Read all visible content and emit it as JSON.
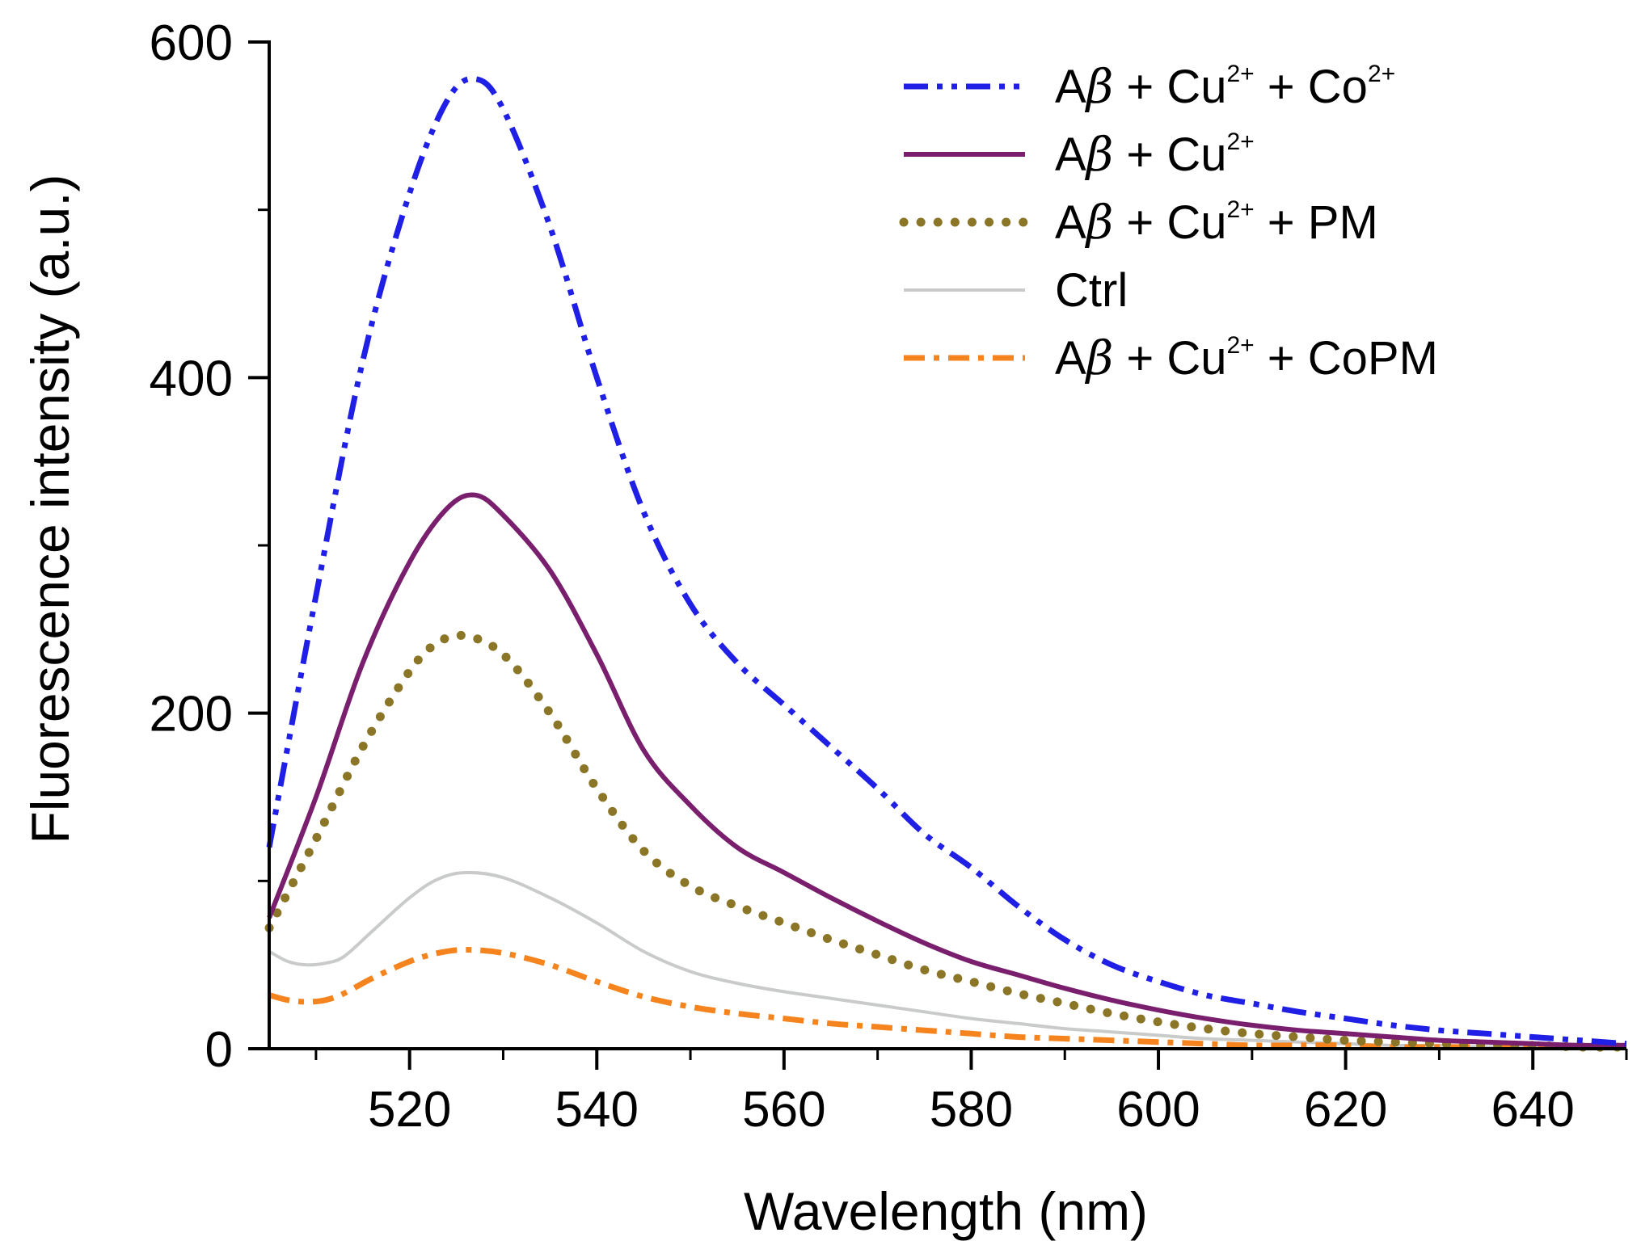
{
  "chart_data": {
    "type": "line",
    "title": "",
    "xlabel": "Wavelength (nm)",
    "ylabel": "Fluorescence intensity (a.u.)",
    "xlim": [
      505,
      650
    ],
    "ylim": [
      0,
      600
    ],
    "xticks": [
      520,
      540,
      560,
      580,
      600,
      620,
      640
    ],
    "yticks": [
      0,
      200,
      400,
      600
    ],
    "x_minor_step": 10,
    "y_minor_step": 100,
    "grid": false,
    "legend_position": "top-right",
    "series": [
      {
        "name": "Aβ + Cu2+ + Co2+",
        "legend_parts": [
          "A",
          "β",
          " + Cu",
          "2+",
          " + Co",
          "2+"
        ],
        "color": "#1f1fe6",
        "style": "dash-dot-dot",
        "x": [
          505,
          510,
          515,
          520,
          524,
          527,
          530,
          535,
          540,
          545,
          550,
          555,
          560,
          565,
          570,
          575,
          580,
          585,
          590,
          595,
          600,
          605,
          610,
          615,
          620,
          625,
          630,
          635,
          640,
          645,
          650
        ],
        "y": [
          120,
          270,
          410,
          510,
          565,
          578,
          560,
          490,
          400,
          320,
          265,
          230,
          205,
          180,
          155,
          128,
          108,
          85,
          65,
          50,
          40,
          32,
          27,
          22,
          18,
          14,
          11,
          9,
          7,
          5,
          3
        ]
      },
      {
        "name": "Aβ + Cu2+",
        "legend_parts": [
          "A",
          "β",
          " + Cu",
          "2+",
          "",
          ""
        ],
        "color": "#7a1f6e",
        "style": "solid",
        "x": [
          505,
          510,
          515,
          520,
          524,
          527,
          530,
          535,
          540,
          545,
          550,
          555,
          560,
          565,
          570,
          575,
          580,
          585,
          590,
          595,
          600,
          605,
          610,
          615,
          620,
          625,
          630,
          635,
          640,
          645,
          650
        ],
        "y": [
          78,
          150,
          230,
          290,
          322,
          330,
          318,
          285,
          235,
          178,
          145,
          120,
          105,
          90,
          76,
          63,
          52,
          44,
          36,
          29,
          23,
          18,
          14,
          11,
          9,
          7,
          5,
          4,
          3,
          2,
          2
        ]
      },
      {
        "name": "Aβ + Cu2+ + PM",
        "legend_parts": [
          "A",
          "β",
          " + Cu",
          "2+",
          " + PM",
          ""
        ],
        "color": "#8b7628",
        "style": "dotted",
        "x": [
          505,
          510,
          515,
          520,
          523,
          526,
          530,
          535,
          540,
          545,
          550,
          555,
          560,
          565,
          570,
          575,
          580,
          585,
          590,
          595,
          600,
          605,
          610,
          615,
          620,
          625,
          630,
          635,
          640,
          645,
          650
        ],
        "y": [
          72,
          125,
          180,
          225,
          242,
          246,
          235,
          200,
          155,
          118,
          97,
          85,
          75,
          65,
          56,
          47,
          40,
          33,
          27,
          21,
          16,
          12,
          9,
          7,
          5,
          4,
          3,
          2,
          2,
          1,
          1
        ]
      },
      {
        "name": "Ctrl",
        "legend_parts": [
          "Ctrl",
          "",
          "",
          "",
          "",
          ""
        ],
        "color": "#c9cbcb",
        "style": "solid",
        "x": [
          505,
          507,
          509,
          511,
          513,
          516,
          520,
          523,
          526,
          530,
          535,
          540,
          545,
          550,
          555,
          560,
          565,
          570,
          575,
          580,
          585,
          590,
          595,
          600,
          605,
          610,
          615,
          620,
          625,
          630,
          635,
          640,
          645,
          650
        ],
        "y": [
          58,
          52,
          50,
          51,
          55,
          70,
          90,
          101,
          105,
          102,
          90,
          75,
          58,
          46,
          39,
          34,
          30,
          26,
          22,
          18,
          15,
          12,
          10,
          8,
          6,
          5,
          4,
          3,
          2,
          2,
          1,
          1,
          1,
          1
        ]
      },
      {
        "name": "Aβ + Cu2+ + CoPM",
        "legend_parts": [
          "A",
          "β",
          " + Cu",
          "2+",
          " + CoPM",
          ""
        ],
        "color": "#f5841f",
        "style": "dash-dot",
        "x": [
          505,
          507,
          509,
          511,
          513,
          516,
          520,
          523,
          526,
          530,
          535,
          540,
          545,
          550,
          555,
          560,
          565,
          570,
          575,
          580,
          585,
          590,
          595,
          600,
          605,
          610,
          615,
          620,
          625,
          630,
          635,
          640,
          645,
          650
        ],
        "y": [
          32,
          29,
          28,
          29,
          33,
          42,
          52,
          57,
          59,
          57,
          50,
          40,
          31,
          25,
          21,
          18,
          15,
          13,
          11,
          9,
          7,
          6,
          5,
          4,
          3,
          2,
          2,
          2,
          1,
          1,
          1,
          1,
          1,
          1
        ]
      }
    ]
  }
}
